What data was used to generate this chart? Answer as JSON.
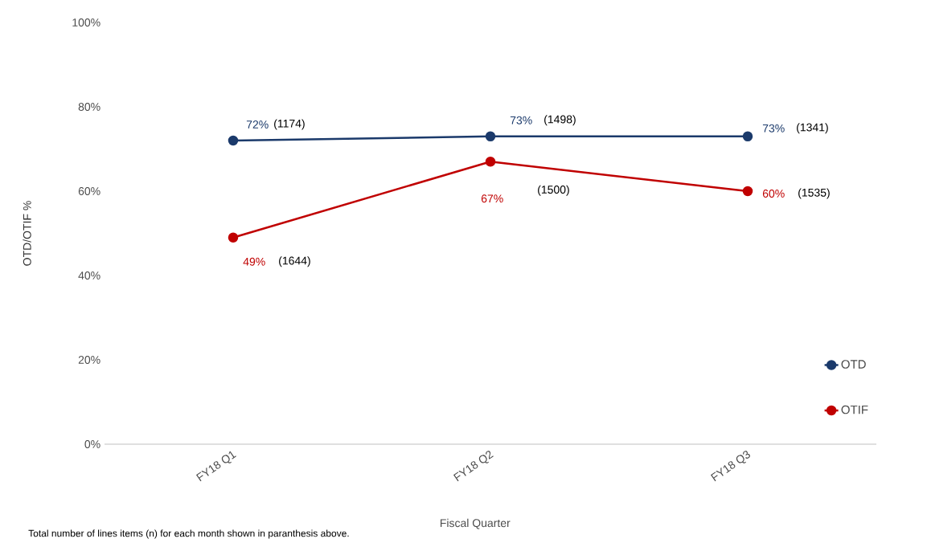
{
  "chart_data": {
    "type": "line",
    "xlabel": "Fiscal Quarter",
    "ylabel": "OTD/OTIF %",
    "categories": [
      "FY18 Q1",
      "FY18 Q2",
      "FY18 Q3"
    ],
    "series": [
      {
        "name": "OTD",
        "color": "#1b3a6b",
        "values": [
          72,
          73,
          73
        ],
        "value_labels": [
          "72%",
          "73%",
          "73%"
        ]
      },
      {
        "name": "OTIF",
        "color": "#c00000",
        "values": [
          49,
          67,
          60
        ],
        "value_labels": [
          "49%",
          "67%",
          "60%"
        ]
      }
    ],
    "ylim": [
      0,
      100
    ],
    "yticks": [
      {
        "value": 0,
        "label": "0%"
      },
      {
        "value": 20,
        "label": "20%"
      },
      {
        "value": 40,
        "label": "40%"
      },
      {
        "value": 60,
        "label": "60%"
      },
      {
        "value": 80,
        "label": "80%"
      },
      {
        "value": 100,
        "label": "100%"
      }
    ],
    "marker": "circle",
    "line_style": "solid",
    "legend": "bottom right",
    "annotations": [
      "(1174)",
      "(1498)",
      "(1341)",
      "(1644)",
      "(1500)",
      "(1535)",
      "Total number of lines items (n) for each month shown in paranthesis above."
    ]
  }
}
